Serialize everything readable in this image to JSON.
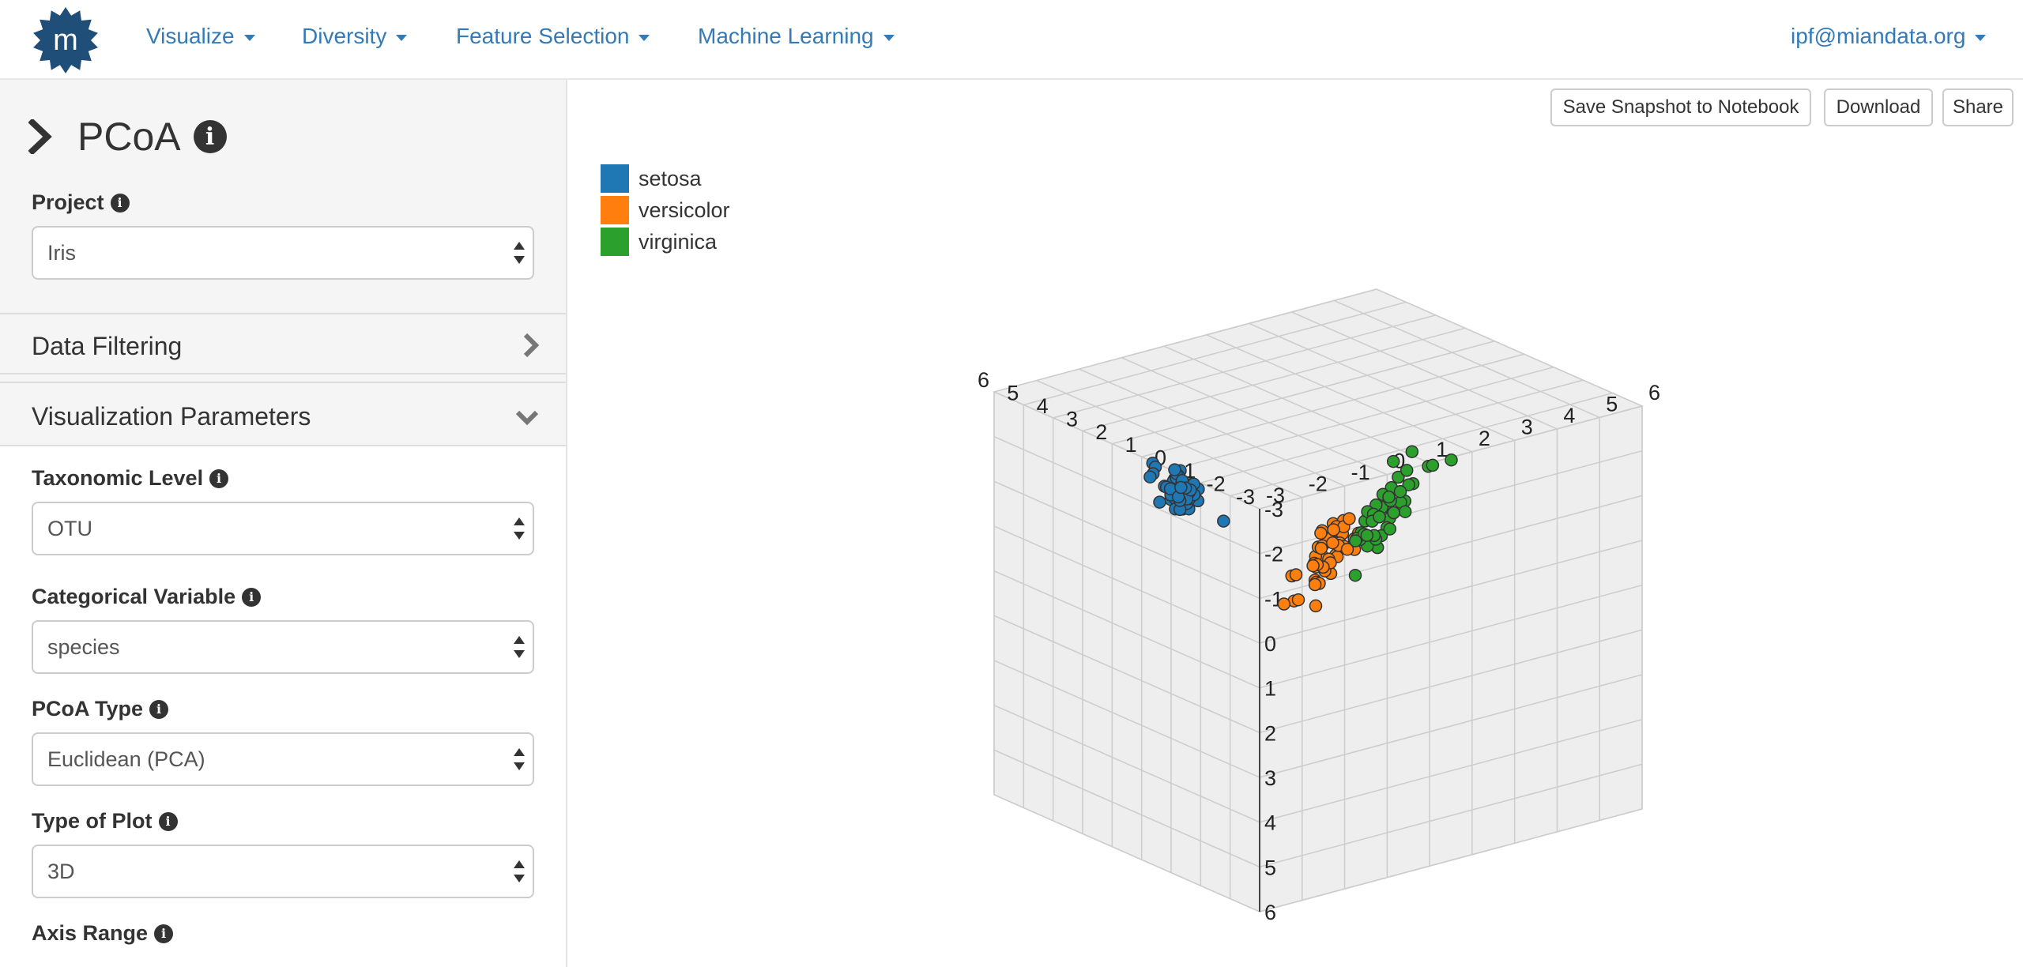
{
  "nav": {
    "items": [
      {
        "label": "Visualize"
      },
      {
        "label": "Diversity"
      },
      {
        "label": "Feature Selection"
      },
      {
        "label": "Machine Learning"
      }
    ],
    "user": "ipf@miandata.org",
    "logo_letter": "m"
  },
  "sidebar": {
    "title": "PCoA",
    "project": {
      "label": "Project",
      "value": "Iris"
    },
    "data_filtering": "Data Filtering",
    "viz_params": "Visualization Parameters",
    "taxonomic_level": {
      "label": "Taxonomic Level",
      "value": "OTU"
    },
    "categorical_variable": {
      "label": "Categorical Variable",
      "value": "species"
    },
    "pcoa_type": {
      "label": "PCoA Type",
      "value": "Euclidean (PCA)"
    },
    "plot_type": {
      "label": "Type of Plot",
      "value": "3D"
    },
    "axis_range": {
      "label": "Axis Range"
    }
  },
  "toolbar": {
    "save_label": "Save Snapshot to Notebook",
    "download_label": "Download",
    "share_label": "Share"
  },
  "colors": {
    "brand": "#1f4e79",
    "link": "#337ab7",
    "setosa": "#1f77b4",
    "versicolor": "#ff7f0e",
    "virginica": "#2ca02c"
  },
  "chart_data": {
    "type": "scatter",
    "dimensions": 3,
    "x_ticks": [
      -3,
      -2,
      -1,
      0,
      1,
      2,
      3,
      4,
      5,
      6
    ],
    "y_ticks": [
      -3,
      -2,
      -1,
      0,
      1,
      2,
      3,
      4,
      5,
      6
    ],
    "z_ticks": [
      -3,
      -2,
      -1,
      0,
      1,
      2,
      3,
      4,
      5,
      6
    ],
    "range": [
      -3,
      6
    ],
    "grid": true,
    "legend_position": "top-left",
    "legend": [
      "setosa",
      "versicolor",
      "virginica"
    ],
    "series": [
      {
        "name": "setosa",
        "points": [
          [
            -2.7,
            0.3,
            -2.6
          ],
          [
            -2.7,
            -0.2,
            -2.5
          ],
          [
            -2.9,
            -0.1,
            -2.4
          ],
          [
            -2.8,
            -0.3,
            -2.3
          ],
          [
            -2.8,
            0.3,
            -2.2
          ],
          [
            -2.3,
            0.7,
            -2.6
          ],
          [
            -2.8,
            -0.1,
            -2.1
          ],
          [
            -2.6,
            0.2,
            -2.4
          ],
          [
            -3.0,
            -0.6,
            -2.3
          ],
          [
            -2.7,
            -0.1,
            -2.2
          ],
          [
            -2.5,
            0.6,
            -2.5
          ],
          [
            -2.6,
            0.1,
            -2.3
          ],
          [
            -2.8,
            -0.2,
            -2.6
          ],
          [
            -3.2,
            -0.5,
            -2.4
          ],
          [
            -2.6,
            1.2,
            -2.7
          ],
          [
            -2.4,
            1.4,
            -2.5
          ],
          [
            -2.6,
            0.8,
            -2.3
          ],
          [
            -2.7,
            0.3,
            -2.2
          ],
          [
            -2.2,
            0.9,
            -2.4
          ],
          [
            -2.6,
            0.5,
            -2.5
          ],
          [
            -2.3,
            0.4,
            -2.2
          ],
          [
            -2.6,
            0.4,
            -2.6
          ],
          [
            -3.2,
            0.1,
            -2.3
          ],
          [
            -2.3,
            0.1,
            -2.1
          ],
          [
            -2.4,
            0.0,
            -2.4
          ],
          [
            -2.5,
            -0.2,
            -2.5
          ],
          [
            -2.5,
            0.1,
            -2.2
          ],
          [
            -2.6,
            0.4,
            -2.7
          ],
          [
            -2.6,
            0.3,
            -2.3
          ],
          [
            -2.6,
            -0.1,
            -2.6
          ],
          [
            -2.6,
            -0.2,
            -2.4
          ],
          [
            -2.3,
            0.4,
            -2.2
          ],
          [
            -2.8,
            0.9,
            -2.6
          ],
          [
            -2.8,
            1.0,
            -2.5
          ],
          [
            -2.7,
            -0.1,
            -2.3
          ],
          [
            -2.9,
            0.0,
            -2.1
          ],
          [
            -2.4,
            0.5,
            -2.4
          ],
          [
            -2.9,
            0.3,
            -2.5
          ],
          [
            -3.0,
            -0.3,
            -2.2
          ],
          [
            -2.6,
            0.2,
            -2.6
          ],
          [
            -2.8,
            0.3,
            -2.3
          ],
          [
            -2.6,
            -1.2,
            -2.1
          ],
          [
            -3.0,
            -0.3,
            -2.4
          ],
          [
            -2.4,
            0.1,
            -2.5
          ],
          [
            -2.2,
            0.5,
            -2.2
          ],
          [
            -2.8,
            -0.2,
            -2.6
          ],
          [
            -2.6,
            0.6,
            -2.3
          ],
          [
            -2.9,
            -0.1,
            -2.4
          ],
          [
            -2.5,
            0.6,
            -2.7
          ],
          [
            -2.7,
            0.1,
            -2.5
          ]
        ]
      },
      {
        "name": "versicolor",
        "points": [
          [
            1.3,
            0.7,
            -0.5
          ],
          [
            0.9,
            0.3,
            -0.4
          ],
          [
            1.4,
            0.5,
            -0.6
          ],
          [
            0.2,
            -0.8,
            -0.1
          ],
          [
            1.1,
            0.1,
            -0.5
          ],
          [
            0.6,
            -0.4,
            -0.3
          ],
          [
            1.1,
            0.3,
            -0.6
          ],
          [
            -0.8,
            -1.0,
            0.2
          ],
          [
            1.0,
            0.2,
            -0.3
          ],
          [
            -0.1,
            -0.7,
            0.0
          ],
          [
            -0.5,
            -1.3,
            0.3
          ],
          [
            0.5,
            -0.1,
            -0.2
          ],
          [
            0.2,
            -0.6,
            -0.1
          ],
          [
            0.9,
            -0.1,
            -0.4
          ],
          [
            -0.3,
            -0.2,
            0.0
          ],
          [
            0.9,
            0.5,
            -0.5
          ],
          [
            0.7,
            -0.3,
            -0.2
          ],
          [
            0.2,
            -0.3,
            -0.1
          ],
          [
            0.9,
            -0.6,
            -0.4
          ],
          [
            0.0,
            -0.6,
            0.1
          ],
          [
            1.0,
            -0.1,
            -0.3
          ],
          [
            0.4,
            0.0,
            -0.2
          ],
          [
            1.2,
            -0.3,
            -0.6
          ],
          [
            0.8,
            -0.2,
            -0.4
          ],
          [
            0.6,
            0.2,
            -0.3
          ],
          [
            0.8,
            0.4,
            -0.5
          ],
          [
            1.2,
            0.2,
            -0.6
          ],
          [
            1.4,
            0.3,
            -0.7
          ],
          [
            0.8,
            -0.2,
            -0.4
          ],
          [
            -0.2,
            -0.2,
            0.0
          ],
          [
            0.0,
            -0.7,
            0.1
          ],
          [
            -0.1,
            -0.7,
            0.1
          ],
          [
            0.2,
            -0.3,
            -0.1
          ],
          [
            1.1,
            -0.3,
            -0.5
          ],
          [
            0.5,
            -0.3,
            -0.2
          ],
          [
            0.7,
            0.2,
            -0.3
          ],
          [
            1.1,
            0.4,
            -0.5
          ],
          [
            0.8,
            -0.5,
            -0.4
          ],
          [
            0.3,
            -0.2,
            -0.1
          ],
          [
            0.2,
            -0.6,
            -0.1
          ],
          [
            0.4,
            -0.5,
            -0.2
          ],
          [
            0.8,
            0.0,
            -0.4
          ],
          [
            0.3,
            -0.4,
            -0.1
          ],
          [
            -0.7,
            -1.0,
            0.2
          ],
          [
            0.3,
            -0.4,
            -0.1
          ],
          [
            0.3,
            -0.1,
            -0.1
          ],
          [
            0.3,
            -0.2,
            -0.1
          ],
          [
            0.6,
            0.1,
            -0.3
          ],
          [
            -0.9,
            -0.8,
            0.3
          ],
          [
            0.2,
            -0.2,
            -0.1
          ]
        ]
      },
      {
        "name": "virginica",
        "points": [
          [
            2.5,
            -0.0,
            -0.9
          ],
          [
            1.4,
            -0.6,
            -0.5
          ],
          [
            2.6,
            0.3,
            -1.0
          ],
          [
            2.0,
            -0.2,
            -0.7
          ],
          [
            2.4,
            -0.0,
            -0.9
          ],
          [
            3.4,
            0.5,
            -1.3
          ],
          [
            0.5,
            -1.2,
            -0.1
          ],
          [
            2.9,
            0.3,
            -1.1
          ],
          [
            2.3,
            -0.3,
            -0.8
          ],
          [
            2.9,
            0.8,
            -1.1
          ],
          [
            1.7,
            0.2,
            -0.6
          ],
          [
            1.8,
            -0.4,
            -0.6
          ],
          [
            2.2,
            0.2,
            -0.8
          ],
          [
            1.3,
            -0.8,
            -0.4
          ],
          [
            1.6,
            -0.5,
            -0.5
          ],
          [
            1.9,
            0.1,
            -0.7
          ],
          [
            1.9,
            -0.0,
            -0.7
          ],
          [
            3.5,
            1.2,
            -1.4
          ],
          [
            3.8,
            0.3,
            -1.4
          ],
          [
            1.3,
            -0.8,
            -0.4
          ],
          [
            2.4,
            0.4,
            -0.9
          ],
          [
            1.2,
            -0.6,
            -0.4
          ],
          [
            3.5,
            0.5,
            -1.3
          ],
          [
            1.4,
            -0.1,
            -0.5
          ],
          [
            2.3,
            0.4,
            -0.8
          ],
          [
            2.6,
            0.6,
            -1.0
          ],
          [
            1.3,
            -0.2,
            -0.4
          ],
          [
            1.3,
            -0.1,
            -0.4
          ],
          [
            2.1,
            -0.2,
            -0.8
          ],
          [
            2.4,
            0.6,
            -0.9
          ],
          [
            2.8,
            0.3,
            -1.1
          ],
          [
            3.2,
            1.4,
            -1.2
          ],
          [
            2.1,
            -0.2,
            -0.8
          ],
          [
            1.4,
            -0.2,
            -0.5
          ],
          [
            1.8,
            -0.5,
            -0.6
          ],
          [
            3.1,
            0.8,
            -1.2
          ],
          [
            2.1,
            0.2,
            -0.8
          ],
          [
            1.9,
            0.0,
            -0.7
          ],
          [
            1.2,
            -0.2,
            -0.4
          ],
          [
            2.1,
            0.4,
            -0.8
          ],
          [
            2.3,
            0.2,
            -0.9
          ],
          [
            1.9,
            0.4,
            -0.7
          ],
          [
            1.4,
            -0.6,
            -0.5
          ],
          [
            2.6,
            0.3,
            -1.0
          ],
          [
            2.4,
            0.4,
            -0.9
          ],
          [
            1.9,
            0.2,
            -0.7
          ],
          [
            1.5,
            -0.4,
            -0.5
          ],
          [
            1.8,
            0.1,
            -0.6
          ],
          [
            1.9,
            0.0,
            -0.7
          ],
          [
            1.4,
            -0.3,
            -0.5
          ]
        ]
      }
    ]
  }
}
